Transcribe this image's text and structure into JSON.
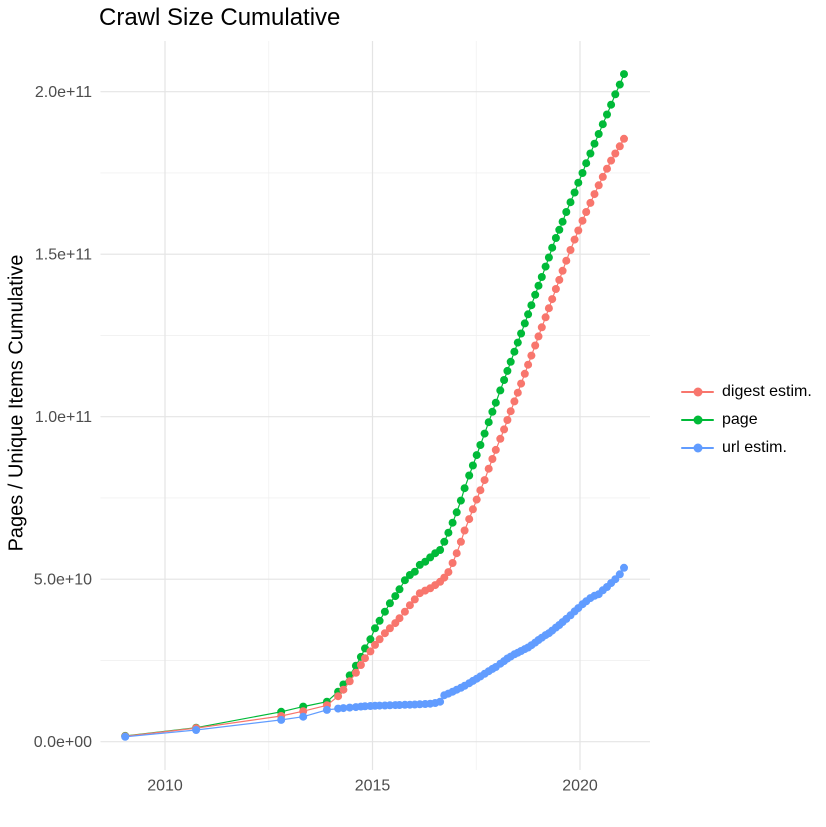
{
  "title": "Crawl Size Cumulative",
  "axes": {
    "x": {
      "tick_labels": [
        "2010",
        "2015",
        "2020"
      ],
      "tick_values": [
        2010,
        2015,
        2020
      ],
      "minor_values": [
        2012.5,
        2017.5
      ],
      "range": [
        2008.45,
        2021.7
      ]
    },
    "y": {
      "label": "Pages / Unique Items Cumulative",
      "tick_labels": [
        "0.0e+00",
        "5.0e+10",
        "1.0e+11",
        "1.5e+11",
        "2.0e+11"
      ],
      "tick_values_e9": [
        0,
        50,
        100,
        150,
        200
      ],
      "minor_values_e9": [
        25,
        75,
        125,
        175
      ],
      "range_e9": [
        -8.7,
        215.6
      ]
    }
  },
  "legend": {
    "items": [
      {
        "label": "digest estim.",
        "color": "#F8766D"
      },
      {
        "label": "page",
        "color": "#00BA38"
      },
      {
        "label": "url estim.",
        "color": "#619CFF"
      }
    ]
  },
  "chart_data": {
    "type": "scatter",
    "title": "Crawl Size Cumulative",
    "xlabel": "",
    "ylabel": "Pages / Unique Items Cumulative",
    "value_unit": "items, values listed in billions (1e9)",
    "xlim": [
      2008.45,
      2021.7
    ],
    "ylim_e9": [
      -8.7,
      215.6
    ],
    "grid": true,
    "legend_position": "right",
    "x_years": [
      2009.04,
      2010.75,
      2012.8,
      2013.33,
      2013.9,
      2014.17,
      2014.3,
      2014.45,
      2014.6,
      2014.72,
      2014.82,
      2014.95,
      2015.06,
      2015.17,
      2015.3,
      2015.42,
      2015.55,
      2015.65,
      2015.78,
      2015.9,
      2016.02,
      2016.14,
      2016.27,
      2016.39,
      2016.51,
      2016.63,
      2016.73,
      2016.83,
      2016.93,
      2017.03,
      2017.13,
      2017.22,
      2017.33,
      2017.42,
      2017.51,
      2017.6,
      2017.7,
      2017.8,
      2017.89,
      2017.97,
      2018.08,
      2018.17,
      2018.25,
      2018.33,
      2018.42,
      2018.5,
      2018.58,
      2018.67,
      2018.75,
      2018.83,
      2018.92,
      2019.0,
      2019.08,
      2019.17,
      2019.25,
      2019.33,
      2019.42,
      2019.5,
      2019.58,
      2019.67,
      2019.77,
      2019.87,
      2019.96,
      2020.06,
      2020.15,
      2020.25,
      2020.35,
      2020.45,
      2020.55,
      2020.65,
      2020.75,
      2020.85,
      2020.96,
      2021.06
    ],
    "series": [
      {
        "name": "digest estim.",
        "color": "#F8766D",
        "values_e9": [
          1.7,
          4.2,
          7.9,
          9.4,
          11.2,
          14.0,
          16.0,
          18.6,
          21.2,
          23.6,
          25.7,
          27.8,
          29.8,
          31.5,
          33.4,
          34.9,
          36.5,
          38.0,
          40.0,
          42.0,
          43.8,
          45.7,
          46.5,
          47.2,
          48.2,
          49.2,
          50.5,
          52.2,
          55.0,
          58.0,
          61.5,
          65.0,
          68.5,
          71.5,
          74.5,
          77.4,
          80.5,
          84.0,
          87.0,
          89.8,
          93.2,
          96.1,
          99.0,
          101.7,
          104.7,
          107.4,
          110.2,
          113.2,
          116.0,
          118.8,
          121.9,
          124.7,
          127.5,
          130.6,
          133.4,
          136.2,
          139.3,
          142.1,
          144.9,
          148.0,
          151.3,
          154.5,
          157.3,
          160.3,
          163.0,
          165.8,
          168.5,
          171.2,
          173.8,
          176.3,
          178.8,
          181.0,
          183.2,
          185.5
        ]
      },
      {
        "name": "page",
        "color": "#00BA38",
        "values_e9": [
          1.8,
          4.3,
          9.2,
          10.8,
          12.3,
          15.4,
          17.6,
          20.4,
          23.4,
          26.1,
          28.7,
          31.5,
          34.9,
          37.2,
          40.0,
          42.6,
          44.8,
          46.9,
          49.7,
          51.3,
          52.3,
          54.4,
          55.4,
          56.7,
          58.0,
          59.0,
          61.5,
          64.3,
          67.4,
          70.6,
          74.2,
          78.0,
          81.9,
          85.0,
          88.2,
          91.3,
          94.8,
          98.3,
          101.5,
          104.3,
          108.1,
          111.3,
          114.1,
          116.9,
          120.0,
          122.8,
          125.6,
          128.7,
          131.5,
          134.3,
          137.5,
          140.3,
          143.0,
          146.2,
          149.0,
          152.0,
          155.0,
          157.5,
          160.0,
          163.0,
          166.0,
          169.0,
          172.0,
          175.0,
          178.0,
          181.0,
          184.0,
          187.0,
          190.0,
          193.0,
          196.0,
          199.2,
          202.2,
          205.4
        ]
      },
      {
        "name": "url estim.",
        "color": "#619CFF",
        "values_e9": [
          1.5,
          3.6,
          6.7,
          7.7,
          9.8,
          10.2,
          10.35,
          10.5,
          10.65,
          10.8,
          10.9,
          11.0,
          11.05,
          11.1,
          11.15,
          11.2,
          11.25,
          11.3,
          11.35,
          11.4,
          11.45,
          11.5,
          11.6,
          11.7,
          11.9,
          12.3,
          14.3,
          14.8,
          15.4,
          16.0,
          16.6,
          17.2,
          18.0,
          18.7,
          19.4,
          20.1,
          20.9,
          21.7,
          22.4,
          23.0,
          24.0,
          24.8,
          25.6,
          26.2,
          26.9,
          27.4,
          27.9,
          28.5,
          29.0,
          29.7,
          30.5,
          31.3,
          32.0,
          32.8,
          33.4,
          34.2,
          35.1,
          35.9,
          36.8,
          37.8,
          38.9,
          40.1,
          41.1,
          42.3,
          43.2,
          44.2,
          44.9,
          45.4,
          46.6,
          47.6,
          48.8,
          50.0,
          51.5,
          53.5
        ]
      }
    ]
  },
  "style": {
    "background": "#ffffff",
    "major_grid_color": "#e4e4e4",
    "minor_grid_color": "#f0f0f0",
    "tick_label_color": "#4d4d4d",
    "text_color": "#000000"
  }
}
